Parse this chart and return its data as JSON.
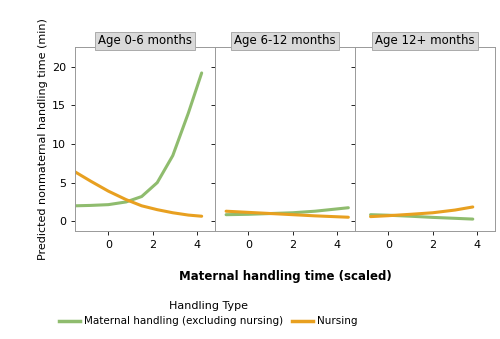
{
  "panels": [
    {
      "title": "Age 0-6 months",
      "x_range": [
        -1.5,
        4.8
      ],
      "x_ticks": [
        0,
        2,
        4
      ],
      "green_x": [
        -1.5,
        -0.8,
        0.0,
        0.8,
        1.5,
        2.2,
        2.9,
        3.6,
        4.2
      ],
      "green_y": [
        2.0,
        2.05,
        2.15,
        2.5,
        3.2,
        5.0,
        8.5,
        14.0,
        19.2
      ],
      "orange_x": [
        -1.5,
        -0.8,
        0.0,
        0.8,
        1.5,
        2.2,
        2.9,
        3.6,
        4.2
      ],
      "orange_y": [
        6.4,
        5.2,
        3.9,
        2.8,
        2.0,
        1.5,
        1.1,
        0.8,
        0.65
      ]
    },
    {
      "title": "Age 6-12 months",
      "x_range": [
        -1.5,
        4.8
      ],
      "x_ticks": [
        0,
        2,
        4
      ],
      "green_x": [
        -1.0,
        0.0,
        1.0,
        2.0,
        3.0,
        4.0,
        4.5
      ],
      "green_y": [
        0.85,
        0.9,
        1.0,
        1.1,
        1.3,
        1.6,
        1.75
      ],
      "orange_x": [
        -1.0,
        0.0,
        1.0,
        2.0,
        3.0,
        4.0,
        4.5
      ],
      "orange_y": [
        1.3,
        1.15,
        1.0,
        0.85,
        0.7,
        0.58,
        0.52
      ]
    },
    {
      "title": "Age 12+ months",
      "x_range": [
        -1.5,
        4.8
      ],
      "x_ticks": [
        0,
        2,
        4
      ],
      "green_x": [
        -0.8,
        0.0,
        1.0,
        2.0,
        3.0,
        3.8
      ],
      "green_y": [
        0.85,
        0.78,
        0.65,
        0.5,
        0.38,
        0.28
      ],
      "orange_x": [
        -0.8,
        0.0,
        1.0,
        2.0,
        3.0,
        3.8
      ],
      "orange_y": [
        0.6,
        0.72,
        0.9,
        1.1,
        1.45,
        1.85
      ]
    }
  ],
  "y_label": "Predicted nonmaternal handling time (min)",
  "x_label": "Maternal handling time (scaled)",
  "y_range": [
    -1.2,
    22.5
  ],
  "y_ticks": [
    0,
    5,
    10,
    15,
    20
  ],
  "green_color": "#8fbc6e",
  "orange_color": "#e8a020",
  "legend_label_green": "Maternal handling (excluding nursing)",
  "legend_label_orange": "Nursing",
  "legend_title": "Handling Type",
  "strip_bg": "#d9d9d9",
  "strip_edge": "#aaaaaa",
  "plot_bg": "#ffffff",
  "line_width": 2.2
}
